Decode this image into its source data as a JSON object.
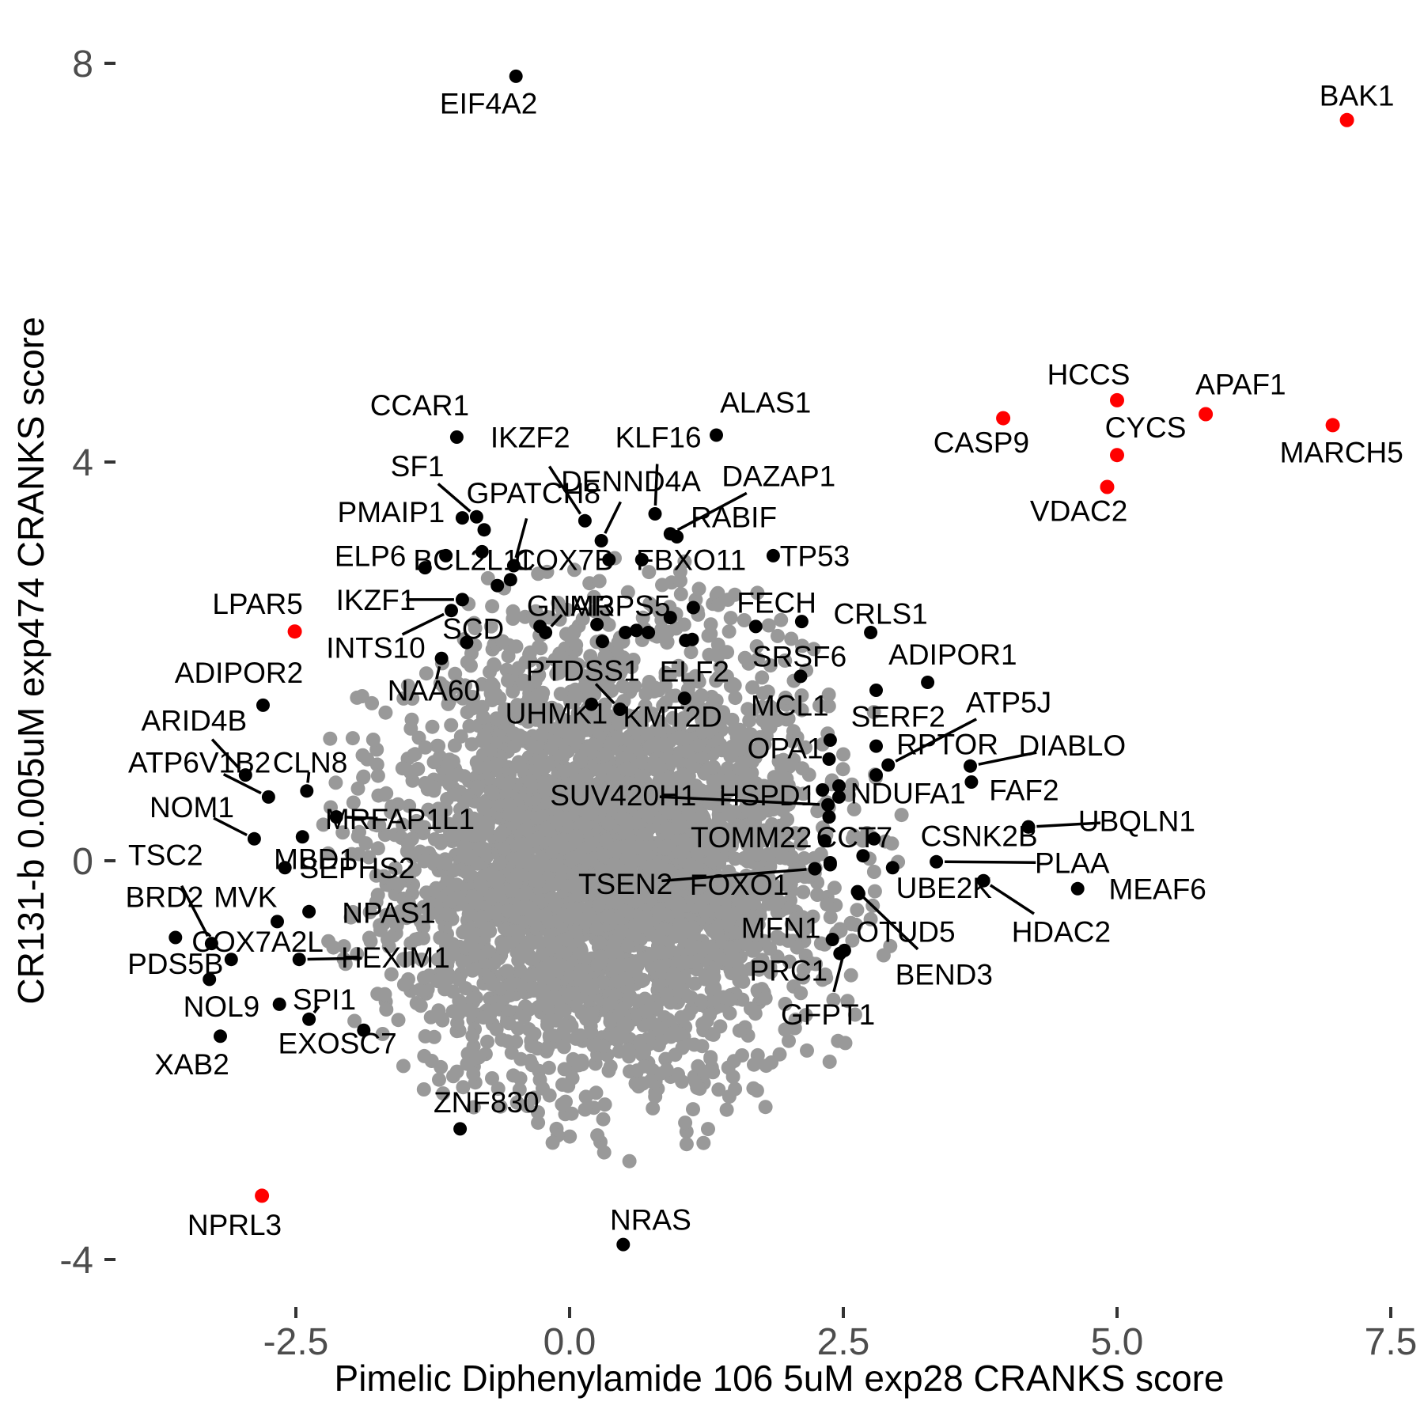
{
  "chart_data": {
    "type": "scatter",
    "title": "",
    "xlabel": "Pimelic Diphenylamide 106 5uM exp28 CRANKS score",
    "ylabel": "CR131-b 0.005uM exp474 CRANKS score",
    "xlim": [
      -4.2,
      7.9
    ],
    "ylim": [
      -4.6,
      8.3
    ],
    "grid": false,
    "legend": "none",
    "x_ticks": [
      {
        "label": "-2.5",
        "value": -2.5
      },
      {
        "label": "0.0",
        "value": 0.0
      },
      {
        "label": "2.5",
        "value": 2.5
      },
      {
        "label": "5.0",
        "value": 5.0
      },
      {
        "label": "7.5",
        "value": 7.5
      }
    ],
    "y_ticks": [
      {
        "label": "-4",
        "value": -4
      },
      {
        "label": "0",
        "value": 0
      },
      {
        "label": "4",
        "value": 4
      },
      {
        "label": "8",
        "value": 8
      }
    ],
    "colors": {
      "highlight_point": "#ff0000",
      "labeled_point": "#000000",
      "background_point": "#999999",
      "tick_text": "#4d4d4d",
      "axis_text": "#000000",
      "leader_line": "#000000"
    },
    "background_cloud": {
      "count": 3600,
      "center_x": 0.35,
      "center_y": 0.05,
      "sigma_x": 1.0,
      "sigma_y": 1.12,
      "max_radius_sigma": 2.75,
      "seed": 7,
      "point_radius": 9
    },
    "point_radius": {
      "black": 8.5,
      "red": 9
    },
    "extra_black_points": [
      [
        -0.78,
        3.32
      ],
      [
        -0.66,
        2.76
      ],
      [
        -0.54,
        2.82
      ],
      [
        0.51,
        2.29
      ],
      [
        0.61,
        2.31
      ],
      [
        0.72,
        2.29
      ],
      [
        0.92,
        2.44
      ],
      [
        1.13,
        2.54
      ],
      [
        1.06,
        2.21
      ],
      [
        -0.27,
        2.35
      ],
      [
        2.31,
        0.71
      ],
      [
        2.46,
        0.75
      ],
      [
        2.46,
        0.64
      ],
      [
        2.38,
        -0.02
      ],
      [
        -0.8,
        3.1
      ],
      [
        0.3,
        2.2
      ],
      [
        1.7,
        2.35
      ],
      [
        2.68,
        0.05
      ]
    ],
    "labeled_points": [
      {
        "gene": "EIF4A2",
        "x": -0.49,
        "y": 7.87,
        "lx": -0.74,
        "ly": 7.6,
        "color": "black",
        "line": false
      },
      {
        "gene": "BAK1",
        "x": 7.1,
        "y": 7.43,
        "lx": 7.19,
        "ly": 7.68,
        "color": "red",
        "line": false
      },
      {
        "gene": "HCCS",
        "x": 5.0,
        "y": 4.62,
        "lx": 4.74,
        "ly": 4.88,
        "color": "red",
        "line": false
      },
      {
        "gene": "APAF1",
        "x": 5.81,
        "y": 4.48,
        "lx": 6.13,
        "ly": 4.78,
        "color": "red",
        "line": false
      },
      {
        "gene": "CASP9",
        "x": 3.96,
        "y": 4.44,
        "lx": 3.76,
        "ly": 4.2,
        "color": "red",
        "line": false
      },
      {
        "gene": "CYCS",
        "x": 5.0,
        "y": 4.07,
        "lx": 5.26,
        "ly": 4.35,
        "color": "red",
        "line": false
      },
      {
        "gene": "MARCH5",
        "x": 6.97,
        "y": 4.37,
        "lx": 7.05,
        "ly": 4.1,
        "color": "red",
        "line": false
      },
      {
        "gene": "VDAC2",
        "x": 4.91,
        "y": 3.75,
        "lx": 4.65,
        "ly": 3.51,
        "color": "red",
        "line": false
      },
      {
        "gene": "LPAR5",
        "x": -2.51,
        "y": 2.3,
        "lx": -2.85,
        "ly": 2.58,
        "color": "red",
        "line": false
      },
      {
        "gene": "NPRL3",
        "x": -2.81,
        "y": -3.36,
        "lx": -3.06,
        "ly": -3.65,
        "color": "red",
        "line": false
      },
      {
        "gene": "CCAR1",
        "x": -1.03,
        "y": 4.25,
        "lx": -1.37,
        "ly": 4.57,
        "color": "black",
        "line": false
      },
      {
        "gene": "ALAS1",
        "x": 1.34,
        "y": 4.27,
        "lx": 1.79,
        "ly": 4.6,
        "color": "black",
        "line": false
      },
      {
        "gene": "SF1",
        "x": -0.85,
        "y": 3.45,
        "lx": -1.39,
        "ly": 3.96,
        "color": "black",
        "line": true
      },
      {
        "gene": "IKZF2",
        "x": 0.14,
        "y": 3.41,
        "lx": -0.36,
        "ly": 4.25,
        "color": "black",
        "line": true
      },
      {
        "gene": "KLF16",
        "x": 0.78,
        "y": 3.48,
        "lx": 0.81,
        "ly": 4.25,
        "color": "black",
        "line": true
      },
      {
        "gene": "DAZAP1",
        "x": 0.92,
        "y": 3.28,
        "lx": 1.91,
        "ly": 3.86,
        "color": "black",
        "line": true
      },
      {
        "gene": "DENND4A",
        "x": 0.29,
        "y": 3.21,
        "lx": 0.56,
        "ly": 3.81,
        "color": "black",
        "line": true
      },
      {
        "gene": "GPATCH8",
        "x": -0.51,
        "y": 2.96,
        "lx": -0.33,
        "ly": 3.69,
        "color": "black",
        "line": true
      },
      {
        "gene": "PMAIP1",
        "x": -0.98,
        "y": 3.44,
        "lx": -1.63,
        "ly": 3.5,
        "color": "black",
        "line": false
      },
      {
        "gene": "RABIF",
        "x": 0.98,
        "y": 3.25,
        "lx": 1.5,
        "ly": 3.45,
        "color": "black",
        "line": false
      },
      {
        "gene": "ELP6",
        "x": -1.32,
        "y": 2.94,
        "lx": -1.82,
        "ly": 3.06,
        "color": "black",
        "line": false
      },
      {
        "gene": "BCL2L11",
        "x": -1.13,
        "y": 3.06,
        "lx": -0.88,
        "ly": 3.02,
        "color": "black",
        "line": false
      },
      {
        "gene": "COX7B",
        "x": 0.36,
        "y": 3.02,
        "lx": -0.05,
        "ly": 3.02,
        "color": "black",
        "line": false
      },
      {
        "gene": "FBXO11",
        "x": 0.66,
        "y": 3.02,
        "lx": 1.11,
        "ly": 3.02,
        "color": "black",
        "line": false
      },
      {
        "gene": "TP53",
        "x": 1.86,
        "y": 3.06,
        "lx": 2.24,
        "ly": 3.06,
        "color": "black",
        "line": false
      },
      {
        "gene": "FECH",
        "x": 2.12,
        "y": 2.4,
        "lx": 1.89,
        "ly": 2.59,
        "color": "black",
        "line": false
      },
      {
        "gene": "CRLS1",
        "x": 2.75,
        "y": 2.29,
        "lx": 2.84,
        "ly": 2.48,
        "color": "black",
        "line": false
      },
      {
        "gene": "IKZF1",
        "x": -0.98,
        "y": 2.62,
        "lx": -1.77,
        "ly": 2.62,
        "color": "black",
        "line": true
      },
      {
        "gene": "GNAI3",
        "x": -0.22,
        "y": 2.29,
        "lx": 0.01,
        "ly": 2.56,
        "color": "black",
        "line": true
      },
      {
        "gene": "MRPS5",
        "x": 0.25,
        "y": 2.37,
        "lx": 0.46,
        "ly": 2.56,
        "color": "black",
        "line": false
      },
      {
        "gene": "SCD",
        "x": -0.94,
        "y": 2.19,
        "lx": -0.88,
        "ly": 2.33,
        "color": "black",
        "line": false
      },
      {
        "gene": "INTS10",
        "x": -1.08,
        "y": 2.51,
        "lx": -1.77,
        "ly": 2.14,
        "color": "black",
        "line": true
      },
      {
        "gene": "NAA60",
        "x": -1.17,
        "y": 2.03,
        "lx": -1.24,
        "ly": 1.71,
        "color": "black",
        "line": true
      },
      {
        "gene": "PTDSS1",
        "x": 0.46,
        "y": 1.52,
        "lx": 0.12,
        "ly": 1.91,
        "color": "black",
        "line": true
      },
      {
        "gene": "UHMK1",
        "x": 0.2,
        "y": 1.57,
        "lx": -0.12,
        "ly": 1.48,
        "color": "black",
        "line": false
      },
      {
        "gene": "KMT2D",
        "x": 1.05,
        "y": 1.63,
        "lx": 0.94,
        "ly": 1.45,
        "color": "black",
        "line": false
      },
      {
        "gene": "ELF2",
        "x": 1.12,
        "y": 2.22,
        "lx": 1.14,
        "ly": 1.9,
        "color": "black",
        "line": false
      },
      {
        "gene": "SRSF6",
        "x": 2.11,
        "y": 1.85,
        "lx": 2.1,
        "ly": 2.05,
        "color": "black",
        "line": false
      },
      {
        "gene": "ADIPOR1",
        "x": 3.27,
        "y": 1.79,
        "lx": 3.5,
        "ly": 2.07,
        "color": "black",
        "line": false
      },
      {
        "gene": "MCL1",
        "x": 2.38,
        "y": 1.21,
        "lx": 2.01,
        "ly": 1.56,
        "color": "black",
        "line": false
      },
      {
        "gene": "SERF2",
        "x": 2.8,
        "y": 1.71,
        "lx": 3.0,
        "ly": 1.45,
        "color": "black",
        "line": false
      },
      {
        "gene": "OPA1",
        "x": 2.37,
        "y": 1.02,
        "lx": 1.97,
        "ly": 1.13,
        "color": "black",
        "line": false
      },
      {
        "gene": "ATP5J",
        "x": 2.91,
        "y": 0.96,
        "lx": 4.01,
        "ly": 1.59,
        "color": "black",
        "line": true
      },
      {
        "gene": "RPTOR",
        "x": 2.8,
        "y": 1.15,
        "lx": 3.45,
        "ly": 1.17,
        "color": "black",
        "line": false
      },
      {
        "gene": "DIABLO",
        "x": 3.66,
        "y": 0.95,
        "lx": 4.59,
        "ly": 1.16,
        "color": "black",
        "line": true
      },
      {
        "gene": "NDUFA1",
        "x": 2.8,
        "y": 0.86,
        "lx": 3.09,
        "ly": 0.68,
        "color": "black",
        "line": false
      },
      {
        "gene": "FAF2",
        "x": 3.67,
        "y": 0.79,
        "lx": 4.15,
        "ly": 0.71,
        "color": "black",
        "line": false
      },
      {
        "gene": "HSPD1",
        "x": 2.37,
        "y": 0.44,
        "lx": 1.81,
        "ly": 0.66,
        "color": "black",
        "line": false
      },
      {
        "gene": "SUV420H1",
        "x": 2.36,
        "y": 0.56,
        "lx": 0.49,
        "ly": 0.66,
        "color": "black",
        "line": true
      },
      {
        "gene": "TOMM22",
        "x": 2.33,
        "y": 0.2,
        "lx": 1.66,
        "ly": 0.24,
        "color": "black",
        "line": false
      },
      {
        "gene": "CCT7",
        "x": 2.78,
        "y": 0.22,
        "lx": 2.6,
        "ly": 0.24,
        "color": "black",
        "line": false
      },
      {
        "gene": "CSNK2B",
        "x": 4.19,
        "y": 0.34,
        "lx": 3.74,
        "ly": 0.25,
        "color": "black",
        "line": false
      },
      {
        "gene": "UBQLN1",
        "x": 4.19,
        "y": 0.34,
        "lx": 5.18,
        "ly": 0.4,
        "color": "black",
        "line": true
      },
      {
        "gene": "PLAA",
        "x": 3.35,
        "y": -0.01,
        "lx": 4.59,
        "ly": -0.02,
        "color": "black",
        "line": true
      },
      {
        "gene": "UBE2K",
        "x": 2.95,
        "y": -0.07,
        "lx": 3.42,
        "ly": -0.27,
        "color": "black",
        "line": false
      },
      {
        "gene": "HDAC2",
        "x": 3.78,
        "y": -0.2,
        "lx": 4.49,
        "ly": -0.71,
        "color": "black",
        "line": true
      },
      {
        "gene": "MEAF6",
        "x": 4.64,
        "y": -0.28,
        "lx": 5.37,
        "ly": -0.28,
        "color": "black",
        "line": false
      },
      {
        "gene": "TSEN2",
        "x": 2.24,
        "y": -0.08,
        "lx": 0.51,
        "ly": -0.23,
        "color": "black",
        "line": true
      },
      {
        "gene": "FOXO1",
        "x": 2.38,
        "y": -0.04,
        "lx": 1.55,
        "ly": -0.24,
        "color": "black",
        "line": false
      },
      {
        "gene": "MFN1",
        "x": 2.4,
        "y": -0.79,
        "lx": 1.93,
        "ly": -0.67,
        "color": "black",
        "line": false
      },
      {
        "gene": "OTUD5",
        "x": 2.64,
        "y": -0.33,
        "lx": 3.07,
        "ly": -0.71,
        "color": "black",
        "line": false
      },
      {
        "gene": "BEND3",
        "x": 2.63,
        "y": -0.31,
        "lx": 3.42,
        "ly": -1.14,
        "color": "black",
        "line": true
      },
      {
        "gene": "PRC1",
        "x": 2.47,
        "y": -0.93,
        "lx": 2.0,
        "ly": -1.1,
        "color": "black",
        "line": false
      },
      {
        "gene": "GFPT1",
        "x": 2.51,
        "y": -0.9,
        "lx": 2.36,
        "ly": -1.54,
        "color": "black",
        "line": true
      },
      {
        "gene": "ADIPOR2",
        "x": -2.8,
        "y": 1.56,
        "lx": -3.02,
        "ly": 1.89,
        "color": "black",
        "line": false
      },
      {
        "gene": "ARID4B",
        "x": -2.96,
        "y": 0.86,
        "lx": -3.43,
        "ly": 1.41,
        "color": "black",
        "line": true
      },
      {
        "gene": "ATP6V1B2",
        "x": -2.75,
        "y": 0.64,
        "lx": -3.38,
        "ly": 0.99,
        "color": "black",
        "line": true
      },
      {
        "gene": "CLN8",
        "x": -2.4,
        "y": 0.7,
        "lx": -2.37,
        "ly": 0.99,
        "color": "black",
        "line": true
      },
      {
        "gene": "MRFAP1L1",
        "x": -2.13,
        "y": 0.44,
        "lx": -1.55,
        "ly": 0.42,
        "color": "black",
        "line": true
      },
      {
        "gene": "NOM1",
        "x": -2.88,
        "y": 0.22,
        "lx": -3.45,
        "ly": 0.54,
        "color": "black",
        "line": true
      },
      {
        "gene": "MBD1",
        "x": -2.44,
        "y": 0.24,
        "lx": -2.33,
        "ly": 0.02,
        "color": "black",
        "line": false
      },
      {
        "gene": "TSC2",
        "x": -3.27,
        "y": -0.83,
        "lx": -3.69,
        "ly": 0.06,
        "color": "black",
        "line": true
      },
      {
        "gene": "SEPHS2",
        "x": -2.6,
        "y": -0.07,
        "lx": -1.94,
        "ly": -0.07,
        "color": "black",
        "line": false
      },
      {
        "gene": "BRD2",
        "x": -3.6,
        "y": -0.77,
        "lx": -3.7,
        "ly": -0.36,
        "color": "black",
        "line": false
      },
      {
        "gene": "MVK",
        "x": -2.67,
        "y": -0.61,
        "lx": -2.96,
        "ly": -0.36,
        "color": "black",
        "line": false
      },
      {
        "gene": "NPAS1",
        "x": -2.38,
        "y": -0.51,
        "lx": -1.65,
        "ly": -0.52,
        "color": "black",
        "line": false
      },
      {
        "gene": "COX7A2L",
        "x": -3.09,
        "y": -0.99,
        "lx": -2.85,
        "ly": -0.81,
        "color": "black",
        "line": false
      },
      {
        "gene": "HEXIM1",
        "x": -2.47,
        "y": -0.99,
        "lx": -1.59,
        "ly": -0.97,
        "color": "black",
        "line": true
      },
      {
        "gene": "PDS5B",
        "x": -3.29,
        "y": -1.19,
        "lx": -3.6,
        "ly": -1.03,
        "color": "black",
        "line": false
      },
      {
        "gene": "NOL9",
        "x": -2.65,
        "y": -1.44,
        "lx": -3.18,
        "ly": -1.46,
        "color": "black",
        "line": false
      },
      {
        "gene": "SPI1",
        "x": -2.38,
        "y": -1.59,
        "lx": -2.24,
        "ly": -1.39,
        "color": "black",
        "line": true
      },
      {
        "gene": "XAB2",
        "x": -3.19,
        "y": -1.76,
        "lx": -3.45,
        "ly": -2.04,
        "color": "black",
        "line": false
      },
      {
        "gene": "EXOSC7",
        "x": -1.88,
        "y": -1.7,
        "lx": -2.12,
        "ly": -1.83,
        "color": "black",
        "line": false
      },
      {
        "gene": "ZNF830",
        "x": -1.0,
        "y": -2.69,
        "lx": -0.76,
        "ly": -2.42,
        "color": "black",
        "line": false
      },
      {
        "gene": "NRAS",
        "x": 0.49,
        "y": -3.85,
        "lx": 0.74,
        "ly": -3.6,
        "color": "black",
        "line": false
      }
    ]
  }
}
